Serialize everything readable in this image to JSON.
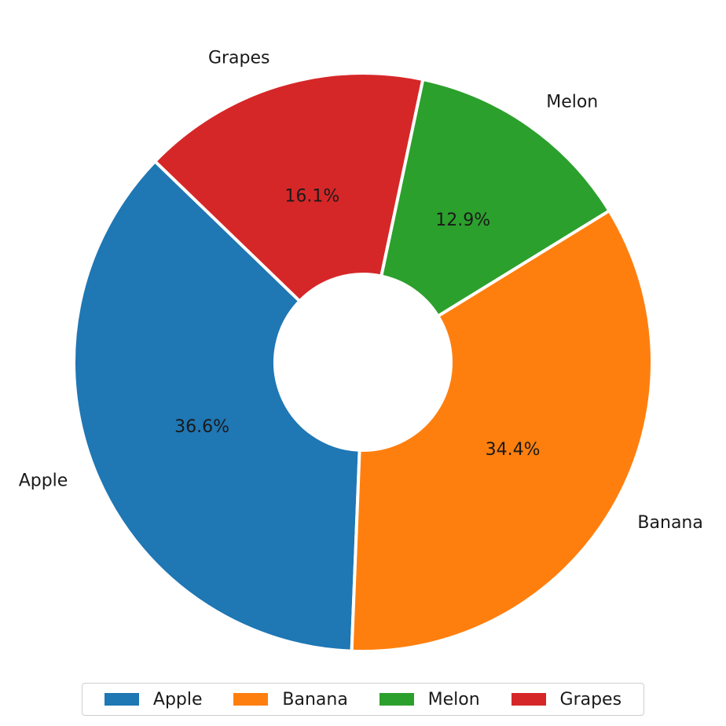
{
  "chart_data": {
    "type": "pie",
    "donut": true,
    "categories": [
      "Apple",
      "Banana",
      "Melon",
      "Grapes"
    ],
    "values": [
      36.6,
      34.4,
      12.9,
      16.1
    ],
    "value_labels": [
      "36.6%",
      "34.4%",
      "12.9%",
      "16.1%"
    ],
    "colors": [
      "#1f77b4",
      "#ff7f0e",
      "#2ca02c",
      "#d62728"
    ],
    "legend_placement": "bottom",
    "title": ""
  },
  "legend": {
    "items": [
      {
        "label": "Apple",
        "color": "#1f77b4"
      },
      {
        "label": "Banana",
        "color": "#ff7f0e"
      },
      {
        "label": "Melon",
        "color": "#2ca02c"
      },
      {
        "label": "Grapes",
        "color": "#d62728"
      }
    ]
  }
}
